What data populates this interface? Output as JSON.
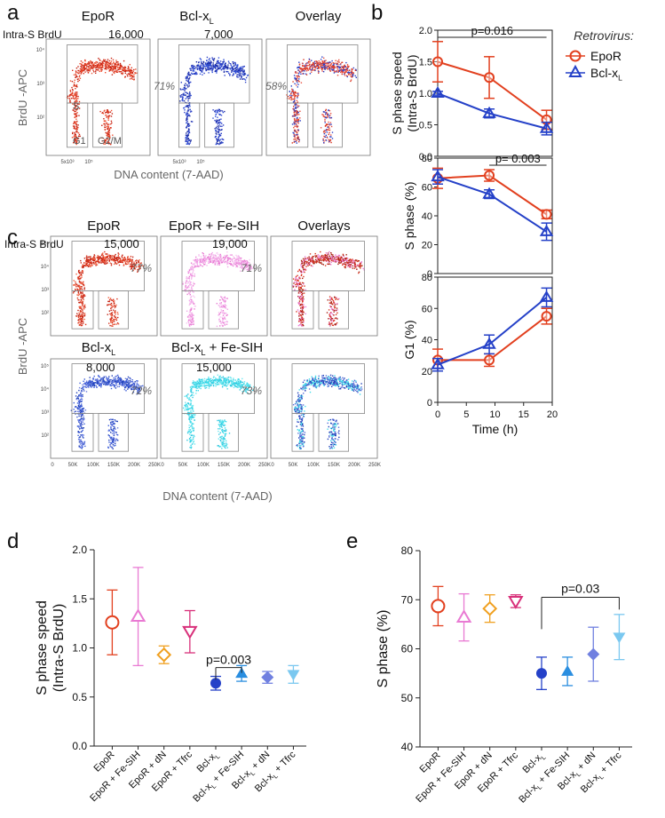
{
  "colors": {
    "epor": "#e2401f",
    "bcl": "#2541c8",
    "pink": "#e97ad3",
    "cyan": "#40dce9",
    "dot_red": "#d9341e",
    "dot_blue": "#2b3fc6",
    "grid": "#888888"
  },
  "panel_a": {
    "letter": "a",
    "titles": [
      "EpoR",
      "Bcl-x",
      "Overlay"
    ],
    "title_sub": "L",
    "corner": "Intra-S BrdU",
    "counts": [
      "16,000",
      "7,000"
    ],
    "pcts": [
      "71%",
      "58%"
    ],
    "gate_s": "S",
    "gate_g1": "G1",
    "gate_g2m": "G2/M",
    "ylabel": "BrdU -APC",
    "xlabel": "DNA content (7-AAD)",
    "ytick_labels": [
      "10⁴",
      "10³",
      "10²"
    ],
    "xtick_labels": [
      "5x10³",
      "10⁵"
    ]
  },
  "panel_c": {
    "letter": "c",
    "titles": [
      "EpoR",
      "EpoR + Fe-SIH",
      "Overlays",
      "Bcl-x",
      "Bcl-x",
      "+ Fe-SIH"
    ],
    "title_sub": "L",
    "corner": "Intra-S BrdU",
    "counts": [
      "15,000",
      "19,000",
      "8,000",
      "15,000"
    ],
    "pcts": [
      "77%",
      "71%",
      "72%",
      "73%"
    ],
    "ylabel": "BrdU -APC",
    "xlabel": "DNA content (7-AAD)",
    "ytick_labels": [
      "10⁵",
      "10⁴",
      "10³",
      "10²"
    ],
    "xtick_labels": [
      "0",
      "50K",
      "100K",
      "150K",
      "200K",
      "250K"
    ]
  },
  "legend": {
    "title": "Retrovirus:",
    "items": [
      "EpoR",
      "Bcl-x"
    ],
    "sub": "L"
  },
  "chart_data": [
    {
      "type": "line",
      "panel": "b",
      "letter": "b",
      "subplots": [
        {
          "ylabel": [
            "S phase speed",
            "(Intra-S  BrdU)"
          ],
          "ylim": [
            0,
            2.0
          ],
          "yticks": [
            "0.0",
            "0.5",
            "1.0",
            "1.5",
            "2.0"
          ],
          "pvalue": "p=0.016",
          "series": [
            {
              "name": "EpoR",
              "x": [
                0,
                9,
                19
              ],
              "y": [
                1.5,
                1.25,
                0.58
              ],
              "err": [
                0.32,
                0.33,
                0.15
              ]
            },
            {
              "name": "Bcl-xL",
              "x": [
                0,
                9,
                19
              ],
              "y": [
                1.0,
                0.68,
                0.44
              ],
              "err": [
                0.03,
                0.07,
                0.1
              ]
            }
          ]
        },
        {
          "ylabel": [
            "S phase (%)"
          ],
          "ylim": [
            0,
            80
          ],
          "yticks": [
            "0",
            "20",
            "40",
            "60",
            "80"
          ],
          "pvalue": "p= 0.003",
          "series": [
            {
              "name": "EpoR",
              "x": [
                0,
                9,
                19
              ],
              "y": [
                66,
                68,
                41
              ],
              "err": [
                7,
                4,
                3
              ]
            },
            {
              "name": "Bcl-xL",
              "x": [
                0,
                9,
                19
              ],
              "y": [
                67,
                55,
                29
              ],
              "err": [
                5,
                3,
                6
              ]
            }
          ]
        },
        {
          "ylabel": [
            "G1 (%)"
          ],
          "ylim": [
            0,
            80
          ],
          "yticks": [
            "0",
            "20",
            "40",
            "60",
            "80"
          ],
          "series": [
            {
              "name": "EpoR",
              "x": [
                0,
                9,
                19
              ],
              "y": [
                27,
                27,
                55
              ],
              "err": [
                7,
                4,
                5
              ]
            },
            {
              "name": "Bcl-xL",
              "x": [
                0,
                9,
                19
              ],
              "y": [
                24,
                37,
                67
              ],
              "err": [
                4,
                6,
                6
              ]
            }
          ]
        }
      ],
      "xlim": [
        0,
        20
      ],
      "xticks": [
        "0",
        "5",
        "10",
        "15",
        "20"
      ],
      "xlabel": "Time (h)"
    },
    {
      "type": "scatter",
      "panel": "d",
      "letter": "d",
      "ylabel": [
        "S phase speed",
        "(Intra-S BrdU)"
      ],
      "ylim": [
        0,
        2.0
      ],
      "yticks": [
        "0.0",
        "0.5",
        "1.0",
        "1.5",
        "2.0"
      ],
      "categories": [
        "EpoR",
        "EpoR + Fe-SIH",
        "EpoR + dN",
        "EpoR + Tfrc",
        "Bcl-x",
        "Bcl-x + Fe-SIH",
        "Bcl-x + dN",
        "Bcl-x + Tfrc"
      ],
      "values": [
        1.26,
        1.32,
        0.93,
        1.17,
        0.64,
        0.74,
        0.7,
        0.73
      ],
      "err_lo": [
        0.33,
        0.5,
        0.09,
        0.22,
        0.07,
        0.08,
        0.06,
        0.09
      ],
      "err_hi": [
        0.33,
        0.5,
        0.09,
        0.21,
        0.07,
        0.08,
        0.06,
        0.09
      ],
      "pvalue": "p=0.003"
    },
    {
      "type": "scatter",
      "panel": "e",
      "letter": "e",
      "ylabel": [
        "S phase (%)"
      ],
      "ylim": [
        40,
        80
      ],
      "yticks": [
        "40",
        "50",
        "60",
        "70",
        "80"
      ],
      "categories": [
        "EpoR",
        "EpoR + Fe-SIH",
        "EpoR + dN",
        "EpoR + Tfrc",
        "Bcl-x",
        "Bcl-x + Fe-SIH",
        "Bcl-x + dN",
        "Bcl-x + Tfrc"
      ],
      "values": [
        68.7,
        66.4,
        68.2,
        69.7,
        55.0,
        55.4,
        58.9,
        62.4
      ],
      "err_lo": [
        4.0,
        4.8,
        2.8,
        1.3,
        3.3,
        2.9,
        5.5,
        4.6
      ],
      "err_hi": [
        4.0,
        4.8,
        2.8,
        1.3,
        3.3,
        2.9,
        5.5,
        4.6
      ],
      "pvalue": "p=0.03"
    }
  ]
}
